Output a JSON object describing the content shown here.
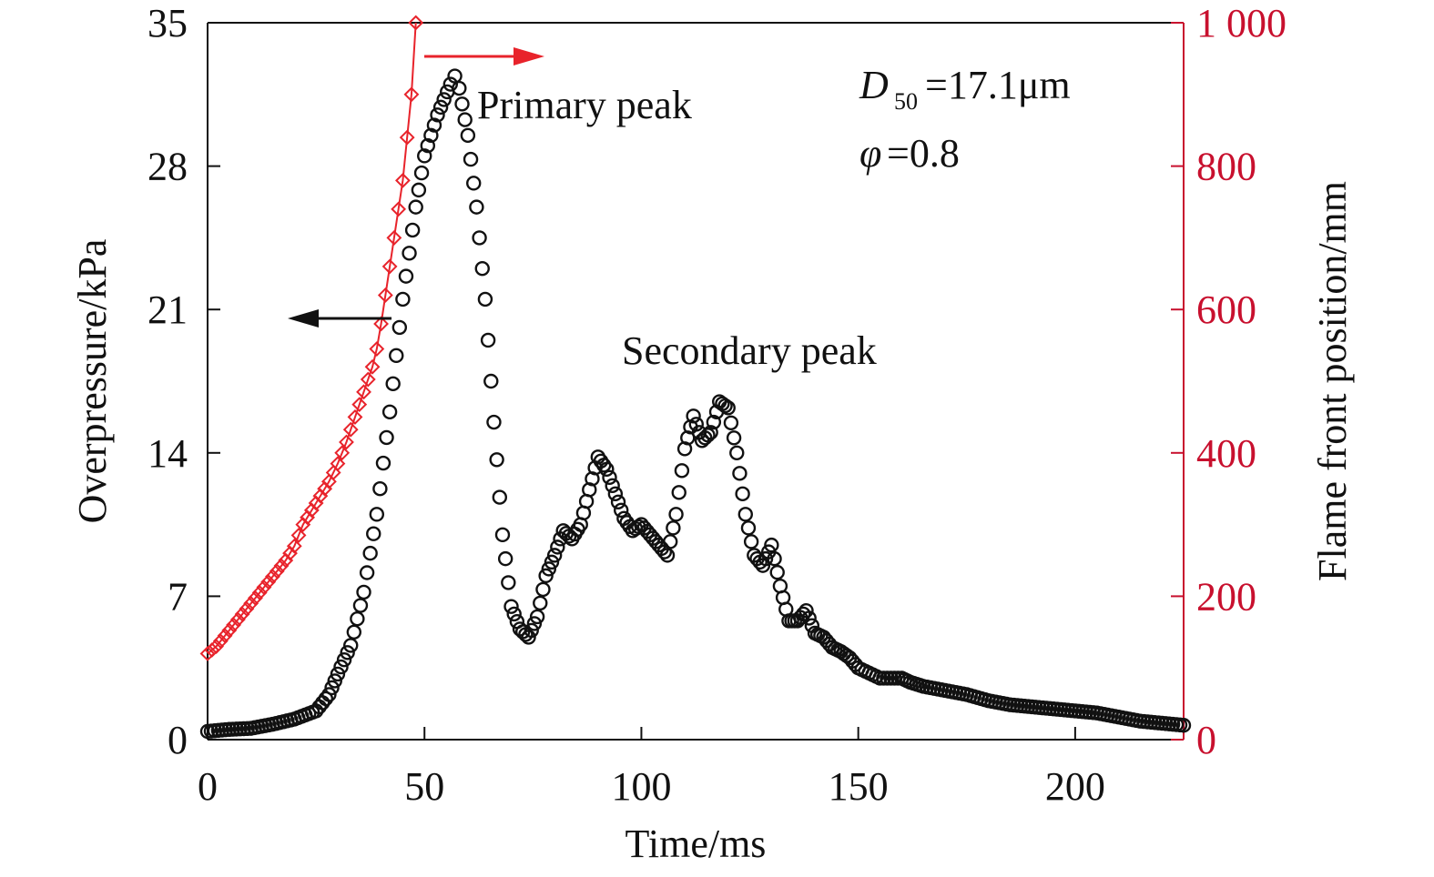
{
  "chart_data": {
    "type": "scatter",
    "x_axis": {
      "label": "Time/ms",
      "range": [
        0,
        225
      ],
      "ticks": [
        "0",
        "50",
        "100",
        "150",
        "200"
      ]
    },
    "y_left": {
      "label": "Overpressure/kPa",
      "range": [
        0,
        35
      ],
      "ticks": [
        "0",
        "7",
        "14",
        "21",
        "28",
        "35"
      ]
    },
    "y_right": {
      "label": "Flame front position/mm",
      "range": [
        0,
        1000
      ],
      "ticks": [
        "0",
        "200",
        "400",
        "600",
        "800",
        "1 000"
      ],
      "color": "#c8102e"
    },
    "grid": false,
    "annotations": {
      "primary_peak": "Primary peak",
      "secondary_peak": "Secondary peak",
      "d50_symbol": "D",
      "d50_sub": "50",
      "d50_value": "=17.1μm",
      "phi_symbol": "φ",
      "phi_value": "=0.8"
    },
    "series": [
      {
        "axis": "left",
        "marker": "circle-open",
        "color": "#111111",
        "points": [
          [
            0,
            0.4
          ],
          [
            5,
            0.5
          ],
          [
            10,
            0.55
          ],
          [
            15,
            0.75
          ],
          [
            20,
            1.0
          ],
          [
            25,
            1.4
          ],
          [
            28,
            2.2
          ],
          [
            30,
            3.2
          ],
          [
            33,
            4.6
          ],
          [
            36,
            7.2
          ],
          [
            39,
            11.0
          ],
          [
            42,
            16.0
          ],
          [
            45,
            21.5
          ],
          [
            48,
            26.0
          ],
          [
            50,
            28.5
          ],
          [
            53,
            30.5
          ],
          [
            56,
            32.0
          ],
          [
            57,
            32.4
          ],
          [
            58,
            31.8
          ],
          [
            60,
            29.5
          ],
          [
            62,
            26.0
          ],
          [
            64,
            21.5
          ],
          [
            66,
            15.5
          ],
          [
            68,
            10.0
          ],
          [
            70,
            6.5
          ],
          [
            72,
            5.4
          ],
          [
            74,
            5.0
          ],
          [
            76,
            6.0
          ],
          [
            78,
            8.0
          ],
          [
            80,
            9.0
          ],
          [
            82,
            10.2
          ],
          [
            84,
            9.8
          ],
          [
            86,
            10.5
          ],
          [
            88,
            12.2
          ],
          [
            90,
            13.8
          ],
          [
            92,
            13.2
          ],
          [
            94,
            12.0
          ],
          [
            96,
            10.8
          ],
          [
            98,
            10.2
          ],
          [
            100,
            10.5
          ],
          [
            102,
            10.0
          ],
          [
            104,
            9.5
          ],
          [
            106,
            9.0
          ],
          [
            108,
            11.0
          ],
          [
            110,
            14.2
          ],
          [
            112,
            15.8
          ],
          [
            114,
            14.6
          ],
          [
            116,
            15.0
          ],
          [
            118,
            16.5
          ],
          [
            120,
            16.2
          ],
          [
            122,
            14.0
          ],
          [
            124,
            11.0
          ],
          [
            126,
            9.0
          ],
          [
            128,
            8.5
          ],
          [
            130,
            9.5
          ],
          [
            132,
            7.5
          ],
          [
            134,
            5.8
          ],
          [
            136,
            5.8
          ],
          [
            138,
            6.3
          ],
          [
            140,
            5.2
          ],
          [
            142,
            5.0
          ],
          [
            144,
            4.5
          ],
          [
            146,
            4.3
          ],
          [
            148,
            4.0
          ],
          [
            150,
            3.5
          ],
          [
            155,
            3.0
          ],
          [
            160,
            3.0
          ],
          [
            162,
            2.8
          ],
          [
            165,
            2.6
          ],
          [
            170,
            2.4
          ],
          [
            175,
            2.2
          ],
          [
            180,
            1.9
          ],
          [
            185,
            1.7
          ],
          [
            190,
            1.6
          ],
          [
            195,
            1.5
          ],
          [
            200,
            1.4
          ],
          [
            205,
            1.3
          ],
          [
            210,
            1.1
          ],
          [
            215,
            0.9
          ],
          [
            220,
            0.8
          ],
          [
            225,
            0.7
          ]
        ]
      },
      {
        "axis": "right",
        "marker": "diamond-open",
        "color": "#e8232b",
        "points": [
          [
            0,
            120
          ],
          [
            2,
            130
          ],
          [
            4,
            145
          ],
          [
            6,
            160
          ],
          [
            8,
            175
          ],
          [
            10,
            190
          ],
          [
            12,
            205
          ],
          [
            14,
            220
          ],
          [
            16,
            235
          ],
          [
            18,
            250
          ],
          [
            20,
            270
          ],
          [
            22,
            300
          ],
          [
            24,
            320
          ],
          [
            26,
            340
          ],
          [
            28,
            360
          ],
          [
            30,
            385
          ],
          [
            32,
            415
          ],
          [
            34,
            450
          ],
          [
            36,
            485
          ],
          [
            38,
            520
          ],
          [
            39,
            545
          ],
          [
            40,
            580
          ],
          [
            41,
            620
          ],
          [
            42,
            660
          ],
          [
            43,
            700
          ],
          [
            44,
            740
          ],
          [
            45,
            780
          ],
          [
            46,
            840
          ],
          [
            47,
            900
          ],
          [
            48,
            1000
          ]
        ]
      }
    ]
  }
}
